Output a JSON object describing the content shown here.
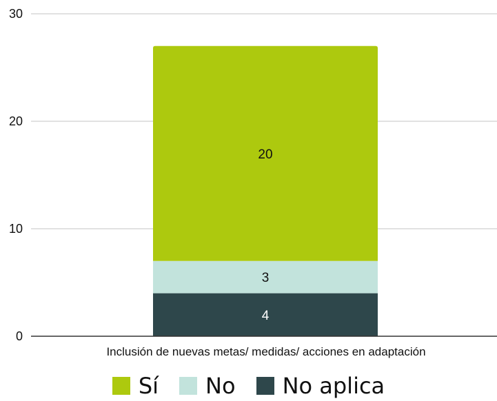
{
  "chart_data": {
    "type": "bar",
    "stacked": true,
    "categories": [
      "Inclusión de nuevas metas/ medidas/ acciones en adaptación"
    ],
    "series": [
      {
        "name": "No aplica",
        "values": [
          4
        ],
        "color": "#2e474b"
      },
      {
        "name": "No",
        "values": [
          3
        ],
        "color": "#c2e3dc"
      },
      {
        "name": "Sí",
        "values": [
          20
        ],
        "color": "#adc90e"
      }
    ],
    "ylim": [
      0,
      30
    ],
    "yticks": [
      0,
      10,
      20,
      30
    ],
    "grid": true,
    "legend_position": "bottom",
    "legend_order": [
      "Sí",
      "No",
      "No aplica"
    ]
  }
}
